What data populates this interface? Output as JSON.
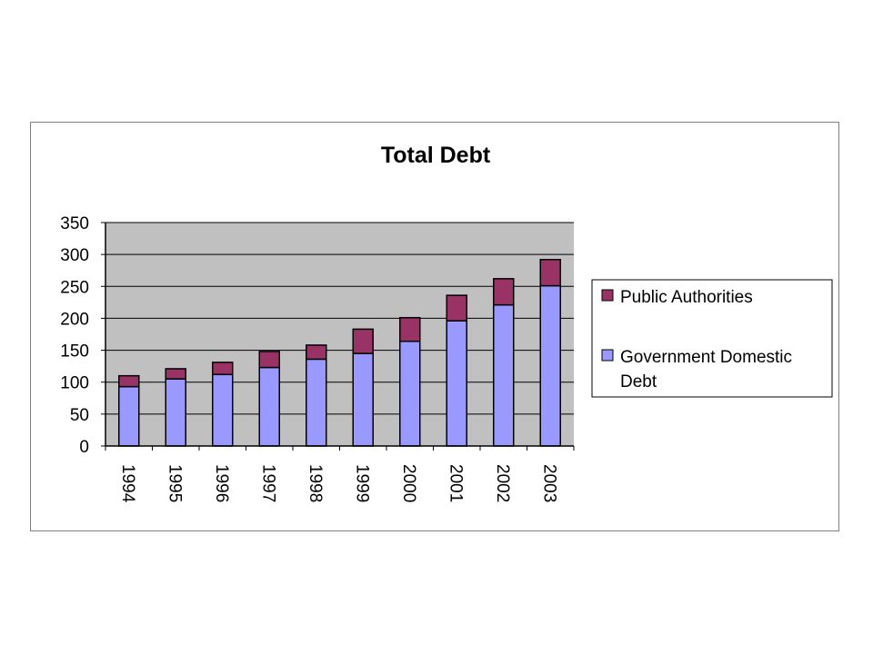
{
  "chart_data": {
    "type": "bar",
    "stacked": true,
    "title": "Total Debt",
    "xlabel": "",
    "ylabel": "",
    "categories": [
      "1994",
      "1995",
      "1996",
      "1997",
      "1998",
      "1999",
      "2000",
      "2001",
      "2002",
      "2003"
    ],
    "series": [
      {
        "name": "Government Domestic Debt",
        "color": "#9999ff",
        "values": [
          93,
          105,
          112,
          123,
          136,
          145,
          164,
          196,
          221,
          251
        ]
      },
      {
        "name": "Public Authorities",
        "color": "#993366",
        "values": [
          17,
          16,
          19,
          25,
          22,
          38,
          37,
          40,
          41,
          41
        ]
      }
    ],
    "ylim": [
      0,
      350
    ],
    "yticks": [
      "0",
      "50",
      "100",
      "150",
      "200",
      "250",
      "300",
      "350"
    ],
    "grid": true,
    "plot_background": "#c0c0c0",
    "legend": {
      "placement": "right",
      "entries": [
        {
          "label": "Public Authorities",
          "color": "#993366"
        },
        {
          "label_line1": "Government Domestic",
          "label_line2": "Debt",
          "color": "#9999ff"
        }
      ]
    }
  }
}
